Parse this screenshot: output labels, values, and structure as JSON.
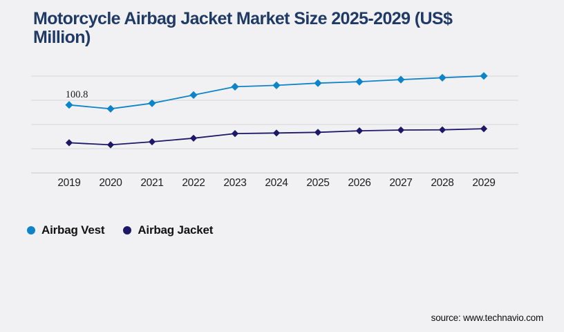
{
  "header": {
    "title_line1": "Motorcycle Airbag Jacket Market Size 2025-2029 (US$",
    "title_line2": "Million)"
  },
  "source": "source: www.technavio.com",
  "colors": {
    "background": "#f1f1f4",
    "title": "#203a66",
    "gridline": "#d6d6d9",
    "axis": "#c6c6ca",
    "tick": "#1c1c1c",
    "annotation": "#1a1a1a",
    "vest_blue": "#0d84c8",
    "jacket_navy": "#1d1768"
  },
  "chart_data": {
    "type": "line",
    "title": "Motorcycle Airbag Jacket Market Size 2025-2029 (US$ Million)",
    "xlabel": "",
    "ylabel": "US$ Million",
    "categories": [
      "2019",
      "2020",
      "2021",
      "2022",
      "2023",
      "2024",
      "2025",
      "2026",
      "2027",
      "2028",
      "2029"
    ],
    "series": [
      {
        "name": "Airbag Vest",
        "color": "#0d84c8",
        "values": [
          100.8,
          95.0,
          103.2,
          115.4,
          127.7,
          129.8,
          133.0,
          135.2,
          138.3,
          141.0,
          143.7
        ]
      },
      {
        "name": "Airbag Jacket",
        "color": "#1d1768",
        "values": [
          44.7,
          41.6,
          46.1,
          51.5,
          58.3,
          59.1,
          60.2,
          62.4,
          63.5,
          63.9,
          65.5
        ]
      }
    ],
    "annotations": [
      {
        "series": "Airbag Vest",
        "index": 0,
        "text": "100.8"
      }
    ],
    "ylim": [
      0,
      143.5
    ],
    "grid": "horizontal",
    "gridline_count": 5,
    "legend_position": "bottom-left",
    "marker": "diamond"
  }
}
